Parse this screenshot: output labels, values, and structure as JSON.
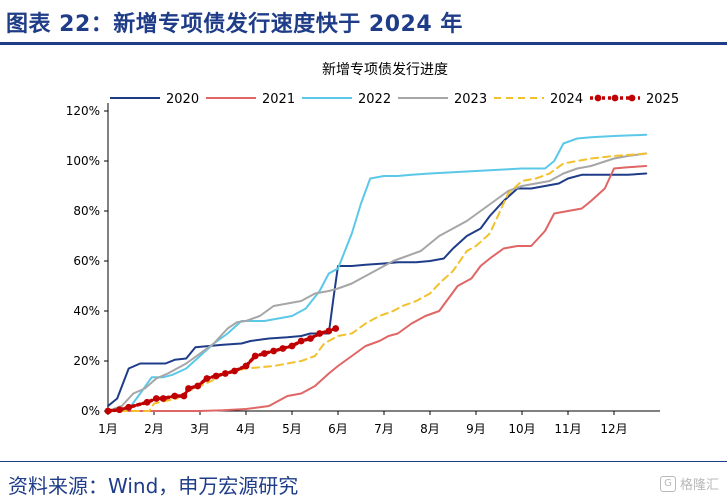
{
  "figure": {
    "title": "图表 22：新增专项债发行速度快于 2024 年",
    "source": "资料来源：Wind，申万宏源研究",
    "watermark": "格隆汇",
    "watermark_icon": "G"
  },
  "chart_data": {
    "type": "line",
    "title": "新增专项债发行进度",
    "xlabel": "",
    "ylabel": "",
    "x_axis": {
      "range": [
        0,
        12
      ],
      "tick_labels": [
        "1月",
        "2月",
        "3月",
        "4月",
        "5月",
        "6月",
        "7月",
        "8月",
        "9月",
        "10月",
        "11月",
        "12月"
      ],
      "tick_positions_month": [
        0,
        1,
        2,
        3,
        4,
        5,
        6,
        7,
        8,
        9,
        10,
        11
      ]
    },
    "y_axis": {
      "range": [
        0,
        120
      ],
      "ticks": [
        0,
        20,
        40,
        60,
        80,
        100,
        120
      ],
      "tick_labels": [
        "0%",
        "20%",
        "40%",
        "60%",
        "80%",
        "100%",
        "120%"
      ],
      "unit": "%"
    },
    "grid": false,
    "legend": {
      "position": "top",
      "orientation": "horizontal"
    },
    "series": [
      {
        "name": "2020",
        "color": "#1f3c88",
        "style": "solid",
        "marker": "none",
        "points": [
          [
            0,
            2
          ],
          [
            0.2,
            5
          ],
          [
            0.45,
            17
          ],
          [
            0.7,
            19
          ],
          [
            1.0,
            19
          ],
          [
            1.25,
            19
          ],
          [
            1.45,
            20.5
          ],
          [
            1.7,
            21
          ],
          [
            1.9,
            25.5
          ],
          [
            2.2,
            26
          ],
          [
            2.5,
            26.5
          ],
          [
            2.9,
            27
          ],
          [
            3.1,
            28
          ],
          [
            3.5,
            29
          ],
          [
            3.9,
            29.5
          ],
          [
            4.2,
            30
          ],
          [
            4.4,
            31
          ],
          [
            4.6,
            31
          ],
          [
            4.8,
            31
          ],
          [
            4.9,
            45
          ],
          [
            5.0,
            58
          ],
          [
            5.3,
            58
          ],
          [
            5.6,
            58.5
          ],
          [
            6.0,
            59
          ],
          [
            6.3,
            59.5
          ],
          [
            6.7,
            59.5
          ],
          [
            7.0,
            60
          ],
          [
            7.3,
            61
          ],
          [
            7.5,
            65
          ],
          [
            7.8,
            70
          ],
          [
            8.1,
            73
          ],
          [
            8.3,
            78
          ],
          [
            8.6,
            84
          ],
          [
            8.9,
            89
          ],
          [
            9.2,
            89
          ],
          [
            9.5,
            90
          ],
          [
            9.8,
            91
          ],
          [
            10.0,
            93
          ],
          [
            10.3,
            94.5
          ],
          [
            10.6,
            94.5
          ],
          [
            11.0,
            94.5
          ],
          [
            11.3,
            94.5
          ],
          [
            11.7,
            95
          ]
        ]
      },
      {
        "name": "2021",
        "color": "#e06666",
        "style": "solid",
        "marker": "none",
        "points": [
          [
            0,
            0
          ],
          [
            0.5,
            0
          ],
          [
            1,
            0
          ],
          [
            1.5,
            0
          ],
          [
            2.0,
            0
          ],
          [
            2.5,
            0.3
          ],
          [
            3.0,
            0.8
          ],
          [
            3.5,
            2
          ],
          [
            3.9,
            6
          ],
          [
            4.2,
            7
          ],
          [
            4.5,
            10
          ],
          [
            4.8,
            15
          ],
          [
            5.0,
            18
          ],
          [
            5.3,
            22
          ],
          [
            5.6,
            26
          ],
          [
            5.9,
            28
          ],
          [
            6.1,
            30
          ],
          [
            6.3,
            31
          ],
          [
            6.6,
            35
          ],
          [
            6.9,
            38
          ],
          [
            7.2,
            40
          ],
          [
            7.4,
            45
          ],
          [
            7.6,
            50
          ],
          [
            7.9,
            53
          ],
          [
            8.1,
            58
          ],
          [
            8.3,
            61
          ],
          [
            8.6,
            65
          ],
          [
            8.9,
            66
          ],
          [
            9.2,
            66
          ],
          [
            9.5,
            72
          ],
          [
            9.7,
            79
          ],
          [
            10.0,
            80
          ],
          [
            10.3,
            81
          ],
          [
            10.5,
            84
          ],
          [
            10.8,
            89
          ],
          [
            11.0,
            97
          ],
          [
            11.3,
            97.5
          ],
          [
            11.7,
            98
          ]
        ]
      },
      {
        "name": "2022",
        "color": "#5bc8e8",
        "style": "solid",
        "marker": "none",
        "points": [
          [
            0,
            0
          ],
          [
            0.3,
            0
          ],
          [
            0.5,
            2
          ],
          [
            0.7,
            7
          ],
          [
            0.95,
            13.5
          ],
          [
            1.2,
            13.5
          ],
          [
            1.4,
            14.5
          ],
          [
            1.7,
            17
          ],
          [
            2.0,
            22
          ],
          [
            2.3,
            27
          ],
          [
            2.6,
            31
          ],
          [
            2.9,
            36
          ],
          [
            3.1,
            36
          ],
          [
            3.4,
            36
          ],
          [
            3.7,
            37
          ],
          [
            4.0,
            38
          ],
          [
            4.3,
            41
          ],
          [
            4.6,
            48
          ],
          [
            4.8,
            55
          ],
          [
            5.0,
            57
          ],
          [
            5.3,
            71
          ],
          [
            5.5,
            83
          ],
          [
            5.7,
            93
          ],
          [
            6.0,
            94
          ],
          [
            6.3,
            94
          ],
          [
            6.6,
            94.5
          ],
          [
            7.0,
            95
          ],
          [
            7.5,
            95.5
          ],
          [
            8.0,
            96
          ],
          [
            8.5,
            96.5
          ],
          [
            9.0,
            97
          ],
          [
            9.5,
            97
          ],
          [
            9.7,
            100
          ],
          [
            9.9,
            107
          ],
          [
            10.2,
            109
          ],
          [
            10.5,
            109.5
          ],
          [
            11.0,
            110
          ],
          [
            11.7,
            110.5
          ]
        ]
      },
      {
        "name": "2023",
        "color": "#a6a6a6",
        "style": "solid",
        "marker": "none",
        "points": [
          [
            0,
            0
          ],
          [
            0.3,
            2
          ],
          [
            0.55,
            7
          ],
          [
            0.8,
            9
          ],
          [
            1.05,
            13
          ],
          [
            1.3,
            15
          ],
          [
            1.5,
            17
          ],
          [
            1.7,
            19
          ],
          [
            2.0,
            23
          ],
          [
            2.3,
            27
          ],
          [
            2.6,
            33
          ],
          [
            2.8,
            35.5
          ],
          [
            3.0,
            36
          ],
          [
            3.3,
            38
          ],
          [
            3.6,
            42
          ],
          [
            3.9,
            43
          ],
          [
            4.2,
            44
          ],
          [
            4.5,
            47
          ],
          [
            4.8,
            48
          ],
          [
            5.0,
            49
          ],
          [
            5.3,
            51
          ],
          [
            5.6,
            54
          ],
          [
            5.9,
            57
          ],
          [
            6.2,
            60
          ],
          [
            6.5,
            62
          ],
          [
            6.8,
            64
          ],
          [
            7.0,
            67
          ],
          [
            7.2,
            70
          ],
          [
            7.5,
            73
          ],
          [
            7.8,
            76
          ],
          [
            8.1,
            80
          ],
          [
            8.4,
            84
          ],
          [
            8.7,
            88
          ],
          [
            9.0,
            90
          ],
          [
            9.3,
            91
          ],
          [
            9.6,
            92
          ],
          [
            9.9,
            95
          ],
          [
            10.2,
            97
          ],
          [
            10.5,
            98
          ],
          [
            11.0,
            101
          ],
          [
            11.3,
            102
          ],
          [
            11.7,
            103
          ]
        ]
      },
      {
        "name": "2024",
        "color": "#f2c12e",
        "style": "dashed",
        "marker": "none",
        "points": [
          [
            0,
            0
          ],
          [
            0.5,
            0
          ],
          [
            0.9,
            0
          ],
          [
            1.0,
            3
          ],
          [
            1.25,
            4
          ],
          [
            1.5,
            5
          ],
          [
            1.75,
            8
          ],
          [
            2.0,
            10
          ],
          [
            2.25,
            12
          ],
          [
            2.5,
            15
          ],
          [
            2.75,
            16
          ],
          [
            3.0,
            17
          ],
          [
            3.3,
            17.5
          ],
          [
            3.6,
            18
          ],
          [
            3.9,
            19
          ],
          [
            4.2,
            20
          ],
          [
            4.5,
            22
          ],
          [
            4.7,
            27
          ],
          [
            5.0,
            30
          ],
          [
            5.3,
            31
          ],
          [
            5.6,
            35
          ],
          [
            5.9,
            38
          ],
          [
            6.2,
            40
          ],
          [
            6.4,
            42
          ],
          [
            6.7,
            44
          ],
          [
            7.0,
            47
          ],
          [
            7.2,
            51
          ],
          [
            7.5,
            56
          ],
          [
            7.8,
            64
          ],
          [
            8.0,
            66
          ],
          [
            8.3,
            71
          ],
          [
            8.5,
            79
          ],
          [
            8.7,
            87
          ],
          [
            9.0,
            92
          ],
          [
            9.3,
            93
          ],
          [
            9.6,
            95
          ],
          [
            9.9,
            99
          ],
          [
            10.2,
            100
          ],
          [
            10.5,
            101
          ],
          [
            11.0,
            102
          ],
          [
            11.7,
            103
          ]
        ]
      },
      {
        "name": "2025",
        "color": "#c00000",
        "style": "dotted",
        "marker": "circle",
        "points": [
          [
            0,
            0
          ],
          [
            0.25,
            0.5
          ],
          [
            0.45,
            1.5
          ],
          [
            0.85,
            3.5
          ],
          [
            1.05,
            5
          ],
          [
            1.2,
            5
          ],
          [
            1.45,
            6
          ],
          [
            1.65,
            6
          ],
          [
            1.75,
            9
          ],
          [
            1.95,
            10
          ],
          [
            2.15,
            13
          ],
          [
            2.35,
            14
          ],
          [
            2.55,
            15
          ],
          [
            2.75,
            16
          ],
          [
            3.0,
            18
          ],
          [
            3.2,
            22
          ],
          [
            3.4,
            23
          ],
          [
            3.6,
            24
          ],
          [
            3.8,
            25
          ],
          [
            4.0,
            26
          ],
          [
            4.2,
            28
          ],
          [
            4.4,
            29
          ],
          [
            4.6,
            31
          ],
          [
            4.8,
            32
          ],
          [
            4.95,
            33
          ]
        ]
      }
    ]
  }
}
